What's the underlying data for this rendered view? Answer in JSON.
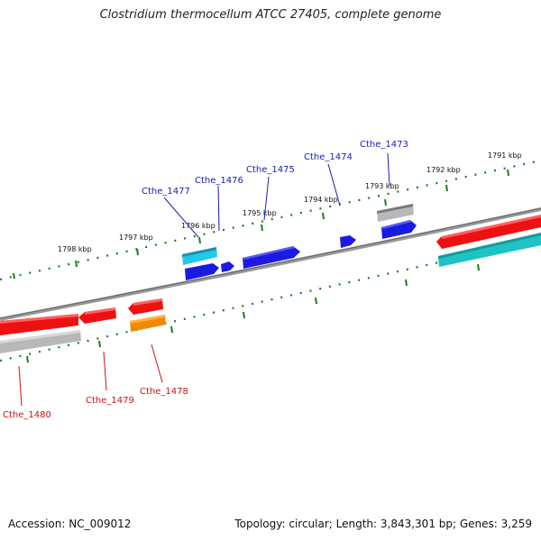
{
  "title": "Clostridium thermocellum ATCC 27405, complete genome",
  "footer": {
    "accession": "Accession: NC_009012",
    "topology": "Topology: circular; Length: 3,843,301 bp; Genes: 3,259"
  },
  "colors": {
    "backbone": "#888888",
    "ticks": "#1f7a1f",
    "forward_label": "#1a1ab8",
    "reverse_label": "#cc1111",
    "red": "#ee1111",
    "gray": "#b8b8b8",
    "blue": "#1a1ae0",
    "cyan": "#22c8e8",
    "teal": "#1ec3c3",
    "orange": "#f08a00"
  },
  "scale_labels": [
    "1791 kbp",
    "1792 kbp",
    "1793 kbp",
    "1794 kbp",
    "1795 kbp",
    "1796 kbp",
    "1797 kbp",
    "1798 kbp"
  ],
  "gene_labels": [
    {
      "name": "Cthe_1473",
      "strand": "forward"
    },
    {
      "name": "Cthe_1474",
      "strand": "forward"
    },
    {
      "name": "Cthe_1475",
      "strand": "forward"
    },
    {
      "name": "Cthe_1476",
      "strand": "forward"
    },
    {
      "name": "Cthe_1477",
      "strand": "forward"
    },
    {
      "name": "Cthe_1478",
      "strand": "reverse"
    },
    {
      "name": "Cthe_1479",
      "strand": "reverse"
    },
    {
      "name": "Cthe_1480",
      "strand": "reverse"
    }
  ]
}
